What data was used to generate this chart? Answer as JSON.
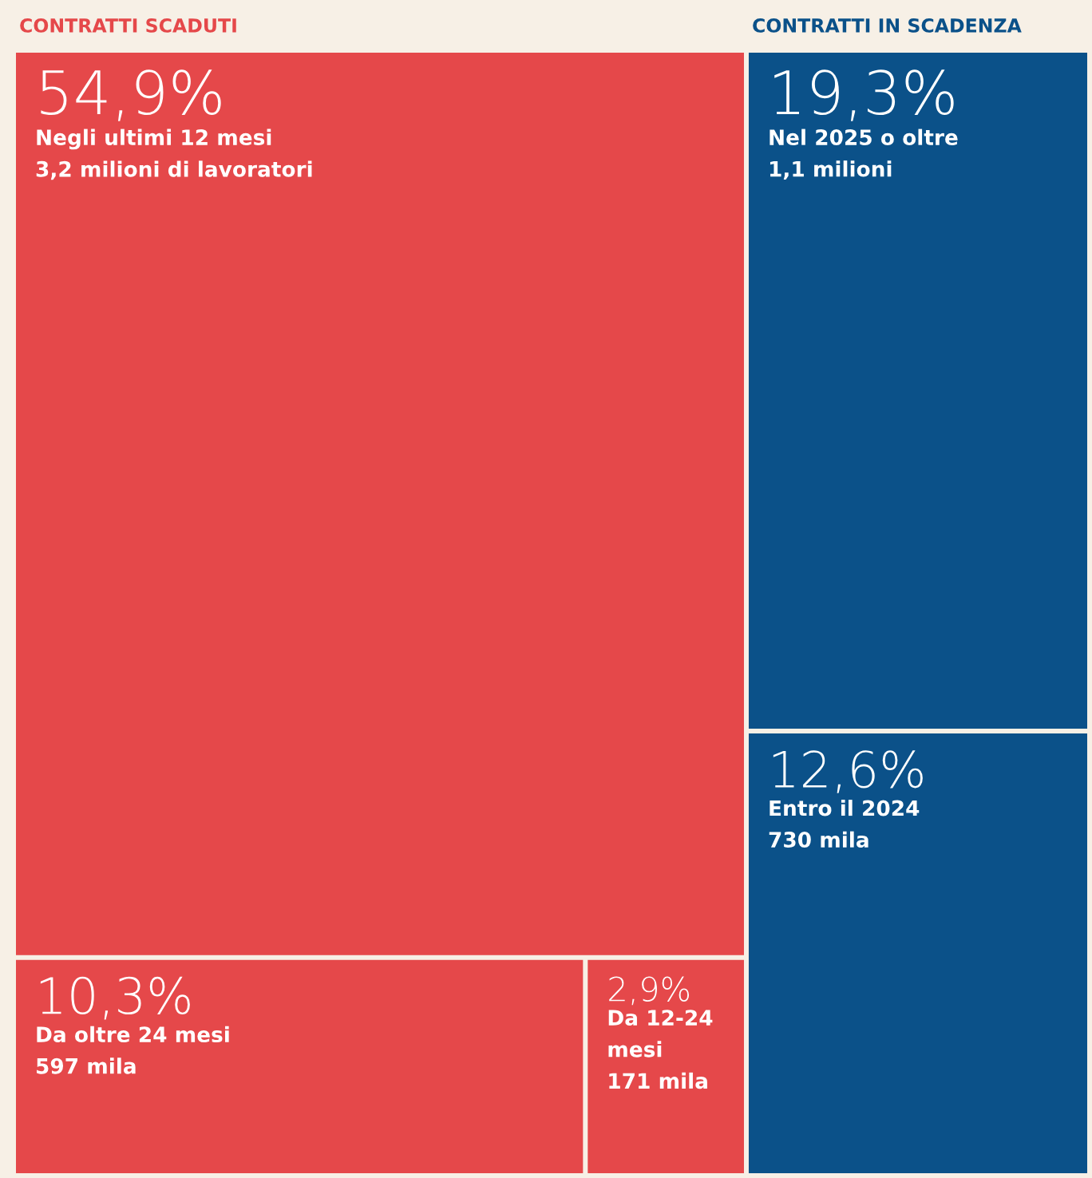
{
  "chart_data": {
    "type": "other",
    "categories": [
      "Negli ultimi 12 mesi",
      "Da oltre 24 mesi",
      "Da 12-24 mesi",
      "Nel 2025 o oltre",
      "Entro il 2024"
    ],
    "series": [
      {
        "name": "CONTRATTI SCADUTI",
        "color": "#e5484a",
        "values": [
          54.9,
          10.3,
          2.9,
          null,
          null
        ],
        "value_labels": [
          "54,9%",
          "10,3%",
          "2,9%",
          null,
          null
        ]
      },
      {
        "name": "CONTRATTI IN SCADENZA",
        "color": "#0b5189",
        "values": [
          null,
          null,
          null,
          19.3,
          12.6
        ],
        "value_labels": [
          null,
          null,
          null,
          "19,3%",
          "12,6%"
        ]
      }
    ],
    "annotations": [
      "3,2 milioni di lavoratori",
      "597 mila",
      "171 mila",
      "1,1 milioni",
      "730 mila"
    ]
  }
}
